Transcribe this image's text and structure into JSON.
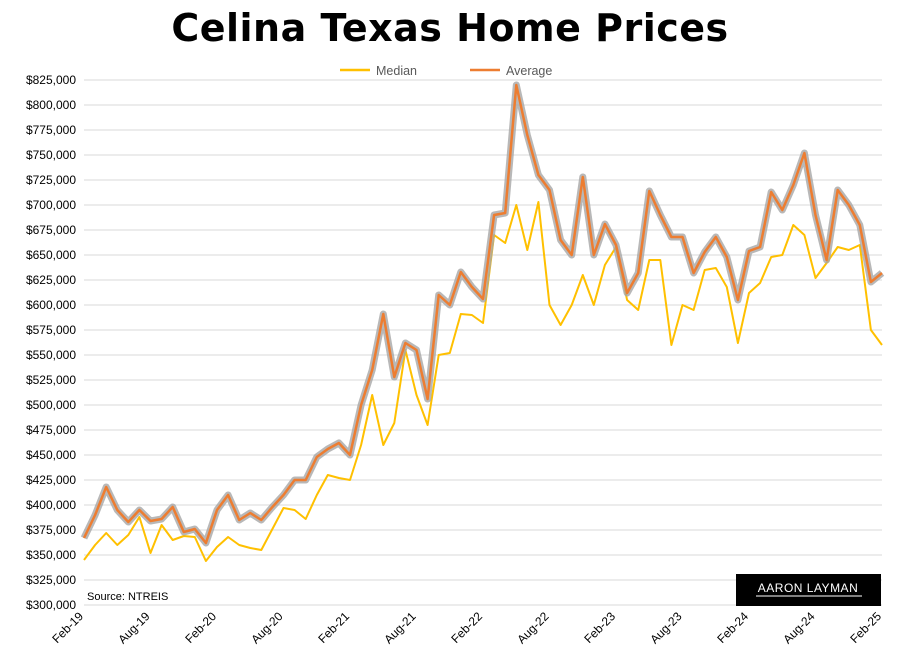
{
  "chart_data": {
    "type": "line",
    "title": "Celina Texas Home Prices",
    "source": "Source: NTREIS",
    "watermark": "AARON LAYMAN",
    "ylim": [
      300000,
      825000
    ],
    "y_ticks": [
      "$300,000",
      "$325,000",
      "$350,000",
      "$375,000",
      "$400,000",
      "$425,000",
      "$450,000",
      "$475,000",
      "$500,000",
      "$525,000",
      "$550,000",
      "$575,000",
      "$600,000",
      "$625,000",
      "$650,000",
      "$675,000",
      "$700,000",
      "$725,000",
      "$750,000",
      "$775,000",
      "$800,000",
      "$825,000"
    ],
    "grid": true,
    "legend_position": "top-center",
    "x_tick_labels": [
      {
        "index": 0,
        "label": "Feb-19"
      },
      {
        "index": 6,
        "label": "Aug-19"
      },
      {
        "index": 12,
        "label": "Feb-20"
      },
      {
        "index": 18,
        "label": "Aug-20"
      },
      {
        "index": 24,
        "label": "Feb-21"
      },
      {
        "index": 30,
        "label": "Aug-21"
      },
      {
        "index": 36,
        "label": "Feb-22"
      },
      {
        "index": 42,
        "label": "Aug-22"
      },
      {
        "index": 48,
        "label": "Feb-23"
      },
      {
        "index": 54,
        "label": "Aug-23"
      },
      {
        "index": 60,
        "label": "Feb-24"
      },
      {
        "index": 66,
        "label": "Aug-24"
      },
      {
        "index": 72,
        "label": "Feb-25"
      }
    ],
    "series": [
      {
        "name": "Median",
        "color": "#FFC000",
        "values": [
          345000,
          360000,
          372000,
          360000,
          370000,
          388000,
          352000,
          380000,
          365000,
          369000,
          368000,
          344000,
          358000,
          368000,
          360000,
          357000,
          355000,
          376000,
          397000,
          395000,
          386000,
          410000,
          430000,
          427000,
          425000,
          460000,
          510000,
          460000,
          482000,
          555000,
          510000,
          480000,
          550000,
          552000,
          591000,
          590000,
          582000,
          670000,
          662000,
          700000,
          655000,
          703000,
          600000,
          580000,
          600000,
          630000,
          600000,
          640000,
          658000,
          605000,
          595000,
          645000,
          645000,
          560000,
          600000,
          595000,
          635000,
          637000,
          618000,
          562000,
          612000,
          622000,
          648000,
          650000,
          680000,
          670000,
          627000,
          642000,
          658000,
          655000,
          660000,
          575000,
          560000
        ]
      },
      {
        "name": "Average",
        "color": "#ED7D31",
        "values": [
          367000,
          390000,
          418000,
          395000,
          383000,
          395000,
          384000,
          386000,
          398000,
          373000,
          376000,
          362000,
          395000,
          410000,
          385000,
          392000,
          385000,
          398000,
          410000,
          425000,
          425000,
          448000,
          456000,
          462000,
          450000,
          500000,
          535000,
          591000,
          528000,
          562000,
          555000,
          506000,
          610000,
          600000,
          633000,
          618000,
          606000,
          690000,
          692000,
          820000,
          770000,
          730000,
          715000,
          665000,
          650000,
          728000,
          650000,
          681000,
          660000,
          612000,
          632000,
          714000,
          690000,
          668000,
          668000,
          632000,
          653000,
          668000,
          648000,
          605000,
          654000,
          658000,
          713000,
          695000,
          720000,
          752000,
          690000,
          645000,
          715000,
          700000,
          680000,
          623000,
          632000
        ]
      }
    ]
  }
}
